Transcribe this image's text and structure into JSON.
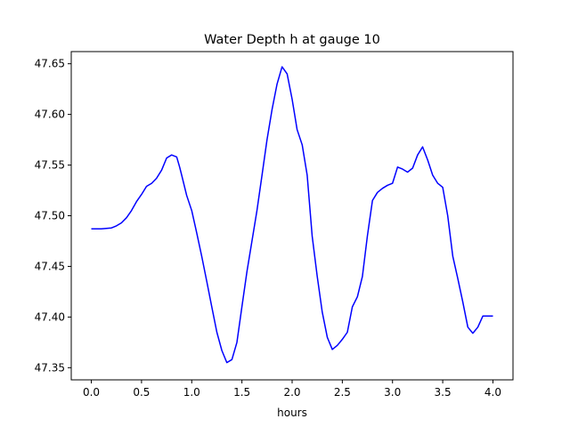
{
  "chart_data": {
    "type": "line",
    "title": "Water Depth h at gauge 10",
    "xlabel": "hours",
    "ylabel": "",
    "xlim": [
      -0.2,
      4.2
    ],
    "ylim": [
      47.338,
      47.662
    ],
    "xticks": [
      "0.0",
      "0.5",
      "1.0",
      "1.5",
      "2.0",
      "2.5",
      "3.0",
      "3.5",
      "4.0"
    ],
    "yticks": [
      "47.35",
      "47.40",
      "47.45",
      "47.50",
      "47.55",
      "47.60",
      "47.65"
    ],
    "grid": false,
    "line_color": "#0000ff",
    "series": [
      {
        "x": [
          0.0,
          0.1,
          0.2,
          0.25,
          0.3,
          0.35,
          0.4,
          0.45,
          0.5,
          0.55,
          0.6,
          0.65,
          0.7,
          0.75,
          0.8,
          0.85,
          0.88,
          0.9,
          0.95,
          1.0,
          1.05,
          1.1,
          1.15,
          1.2,
          1.25,
          1.3,
          1.35,
          1.4,
          1.45,
          1.5,
          1.55,
          1.6,
          1.65,
          1.7,
          1.75,
          1.8,
          1.85,
          1.9,
          1.95,
          2.0,
          2.05,
          2.1,
          2.15,
          2.2,
          2.25,
          2.3,
          2.35,
          2.4,
          2.45,
          2.5,
          2.55,
          2.6,
          2.65,
          2.7,
          2.75,
          2.8,
          2.85,
          2.9,
          2.95,
          3.0,
          3.05,
          3.1,
          3.15,
          3.2,
          3.25,
          3.3,
          3.35,
          3.4,
          3.45,
          3.5,
          3.55,
          3.6,
          3.65,
          3.7,
          3.75,
          3.8,
          3.85,
          3.9,
          3.95,
          4.0
        ],
        "y": [
          47.487,
          47.487,
          47.488,
          47.49,
          47.493,
          47.498,
          47.505,
          47.514,
          47.521,
          47.529,
          47.532,
          47.537,
          47.545,
          47.557,
          47.56,
          47.558,
          47.548,
          47.54,
          47.52,
          47.505,
          47.483,
          47.46,
          47.435,
          47.41,
          47.385,
          47.367,
          47.355,
          47.358,
          47.375,
          47.41,
          47.445,
          47.475,
          47.505,
          47.54,
          47.575,
          47.605,
          47.63,
          47.647,
          47.64,
          47.615,
          47.585,
          47.57,
          47.54,
          47.48,
          47.44,
          47.405,
          47.38,
          47.368,
          47.372,
          47.378,
          47.385,
          47.41,
          47.42,
          47.44,
          47.48,
          47.515,
          47.523,
          47.527,
          47.53,
          47.532,
          47.548,
          47.546,
          47.543,
          47.547,
          47.56,
          47.568,
          47.555,
          47.54,
          47.532,
          47.528,
          47.5,
          47.46,
          47.438,
          47.415,
          47.39,
          47.384,
          47.39,
          47.401,
          47.401,
          47.401
        ]
      }
    ]
  }
}
